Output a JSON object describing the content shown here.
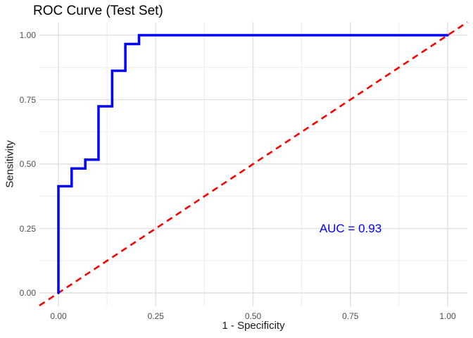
{
  "chart_data": {
    "type": "line",
    "variant": "roc_step_curve",
    "title": "ROC Curve (Test Set)",
    "xlabel": "1 - Specificity",
    "ylabel": "Sensitivity",
    "xlim": [
      0,
      1
    ],
    "ylim": [
      0,
      1
    ],
    "x_ticks": [
      0,
      0.25,
      0.5,
      0.75,
      1
    ],
    "x_tick_labels": [
      "0.00",
      "0.25",
      "0.50",
      "0.75",
      "1.00"
    ],
    "y_ticks": [
      0,
      0.25,
      0.5,
      0.75,
      1
    ],
    "y_tick_labels": [
      "0.00",
      "0.25",
      "0.50",
      "0.75",
      "1.00"
    ],
    "minor_gridlines": [
      0.125,
      0.375,
      0.625,
      0.875
    ],
    "grid": "major+minor",
    "legend": "none",
    "series": [
      {
        "name": "ROC curve",
        "style": "step-hv",
        "color": "#0000FF",
        "linewidth": 3.5,
        "points": [
          [
            0,
            0
          ],
          [
            0,
            0.414
          ],
          [
            0.034,
            0.483
          ],
          [
            0.069,
            0.517
          ],
          [
            0.103,
            0.724
          ],
          [
            0.138,
            0.862
          ],
          [
            0.172,
            0.966
          ],
          [
            0.207,
            1.0
          ],
          [
            1.0,
            1.0
          ]
        ]
      },
      {
        "name": "chance diagonal",
        "style": "dashed",
        "color": "#FF0000",
        "linewidth": 2.6,
        "points": [
          [
            0,
            0
          ],
          [
            1,
            1
          ]
        ],
        "spans_full_panel": true
      }
    ],
    "annotations": [
      {
        "text": "AUC = 0.93",
        "x": 0.75,
        "y": 0.25,
        "color": "#0000FF"
      }
    ],
    "auc": 0.93,
    "colors": {
      "roc": "#0000FF",
      "diagonal": "#FF0000",
      "grid_major": "#E2E2E2",
      "grid_minor": "#EDEDED",
      "tick_label": "#4D4D4D",
      "axis_title": "#1A1A1A",
      "title": "#000000",
      "background": "#FFFFFF"
    }
  }
}
